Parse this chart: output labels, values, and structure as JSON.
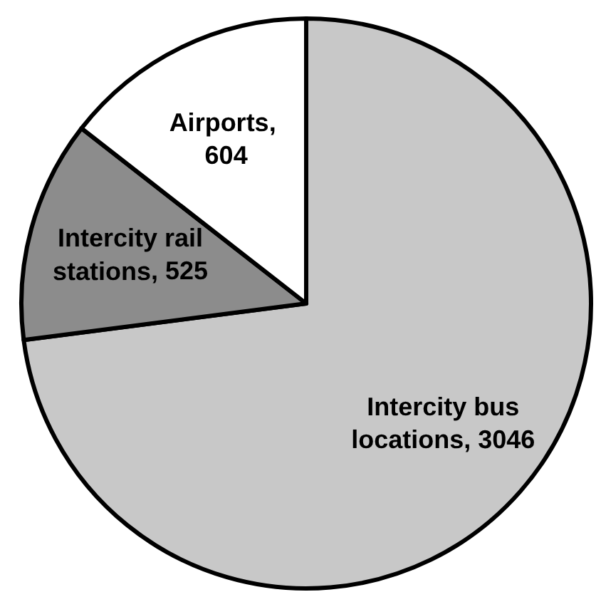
{
  "chart_data": {
    "type": "pie",
    "categories": [
      "Intercity bus locations",
      "Intercity rail stations",
      "Airports"
    ],
    "values": [
      3046,
      525,
      604
    ],
    "value_labels": [
      ", 3046",
      ", 525",
      ", 604"
    ],
    "colors": [
      "#c8c8c8",
      "#8c8c8c",
      "#ffffff"
    ]
  }
}
